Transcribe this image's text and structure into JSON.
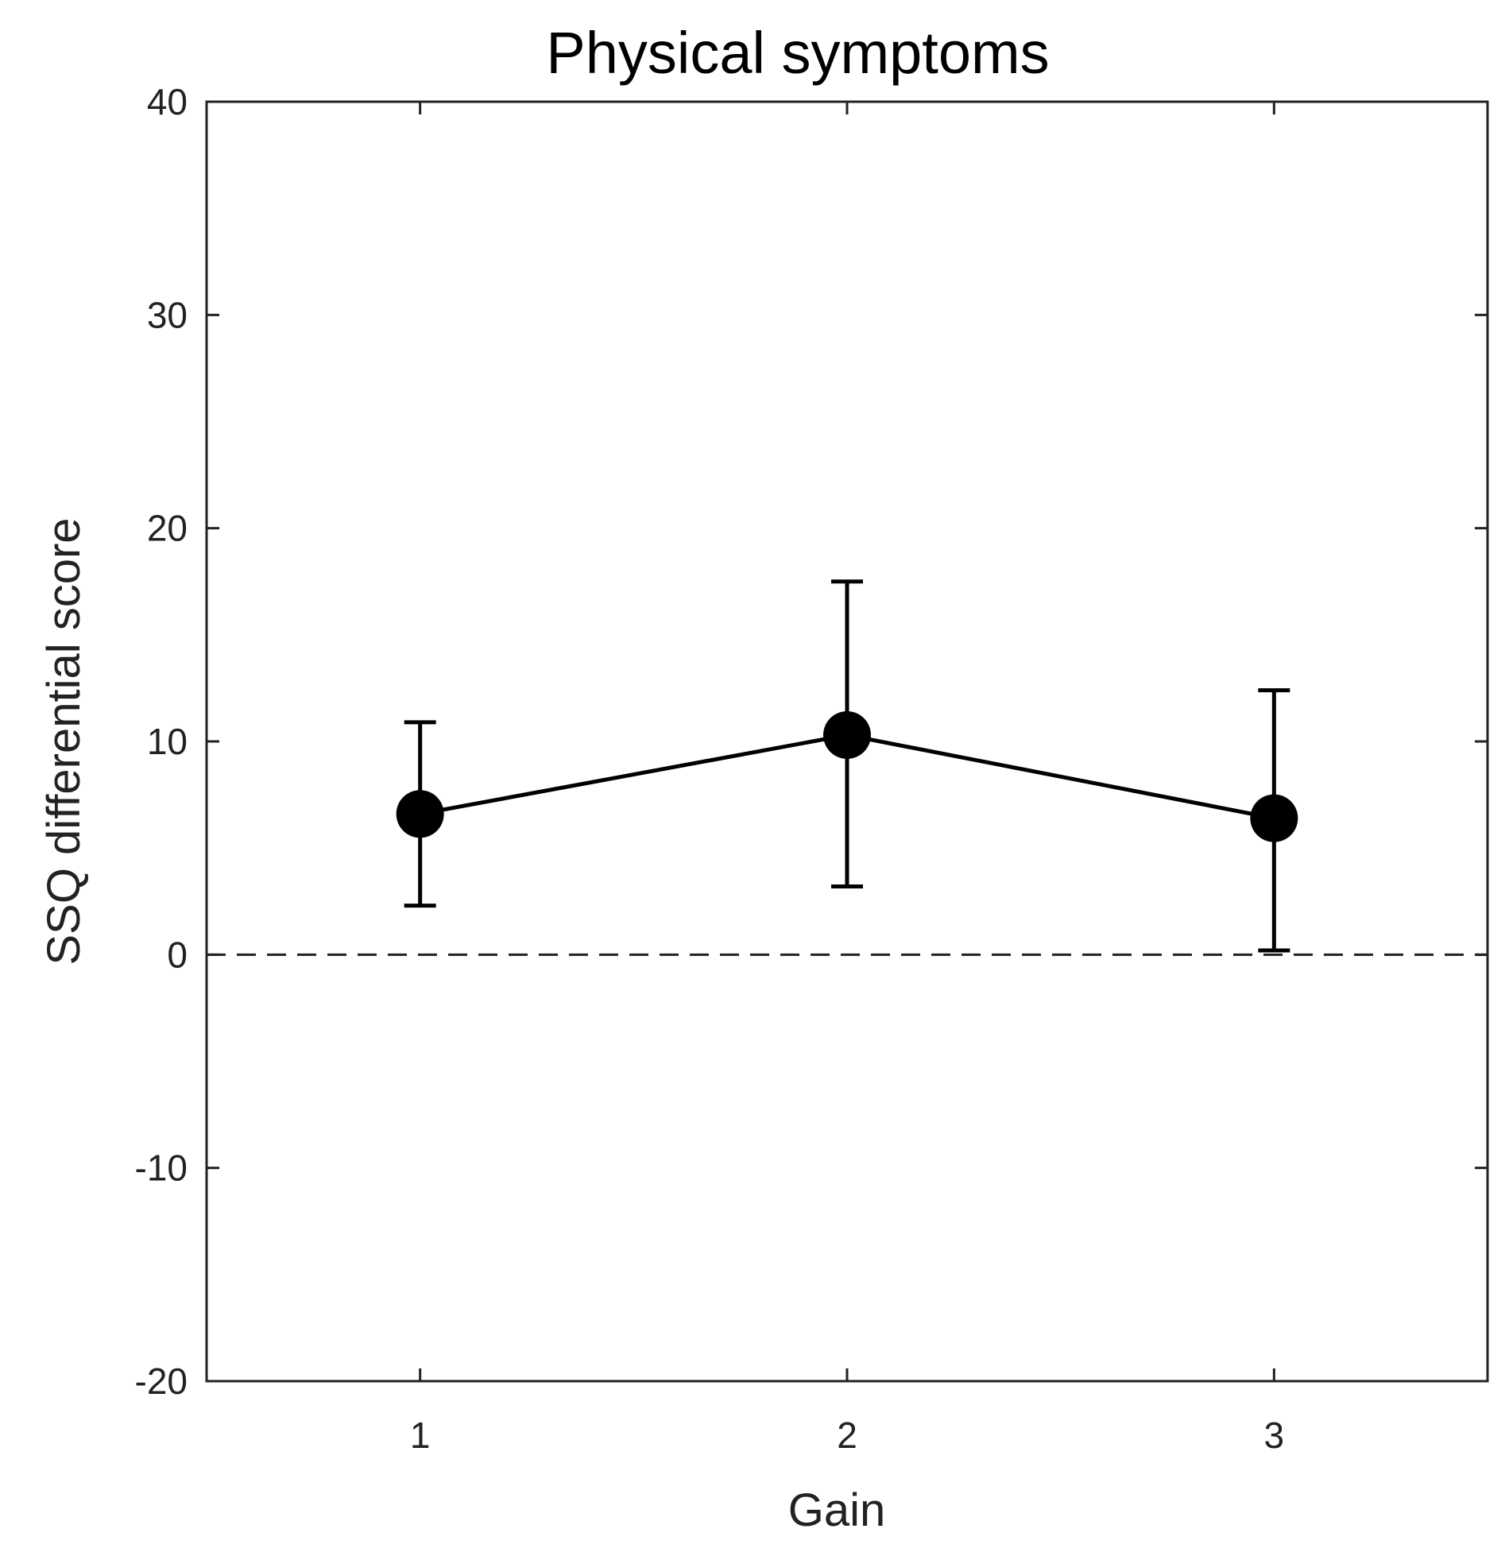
{
  "chart_data": {
    "type": "line",
    "title": "Physical symptoms",
    "xlabel": "Gain",
    "ylabel": "SSQ differential score",
    "categories": [
      "1",
      "2",
      "3"
    ],
    "x": [
      1,
      2,
      3
    ],
    "xlim": [
      0.5,
      3.5
    ],
    "ylim": [
      -20,
      40
    ],
    "yticks": [
      -20,
      -10,
      0,
      10,
      20,
      30,
      40
    ],
    "ytick_labels": [
      "-20",
      "-10",
      "0",
      "10",
      "20",
      "30",
      "40"
    ],
    "grid": false,
    "reference_line": {
      "y": 0,
      "style": "dashed"
    },
    "series": [
      {
        "name": "Physical symptoms",
        "values": [
          6.6,
          10.3,
          6.4
        ],
        "error_low": [
          2.3,
          3.2,
          0.2
        ],
        "error_high": [
          10.9,
          17.5,
          12.4
        ],
        "color": "#000000",
        "marker": "circle"
      }
    ]
  }
}
